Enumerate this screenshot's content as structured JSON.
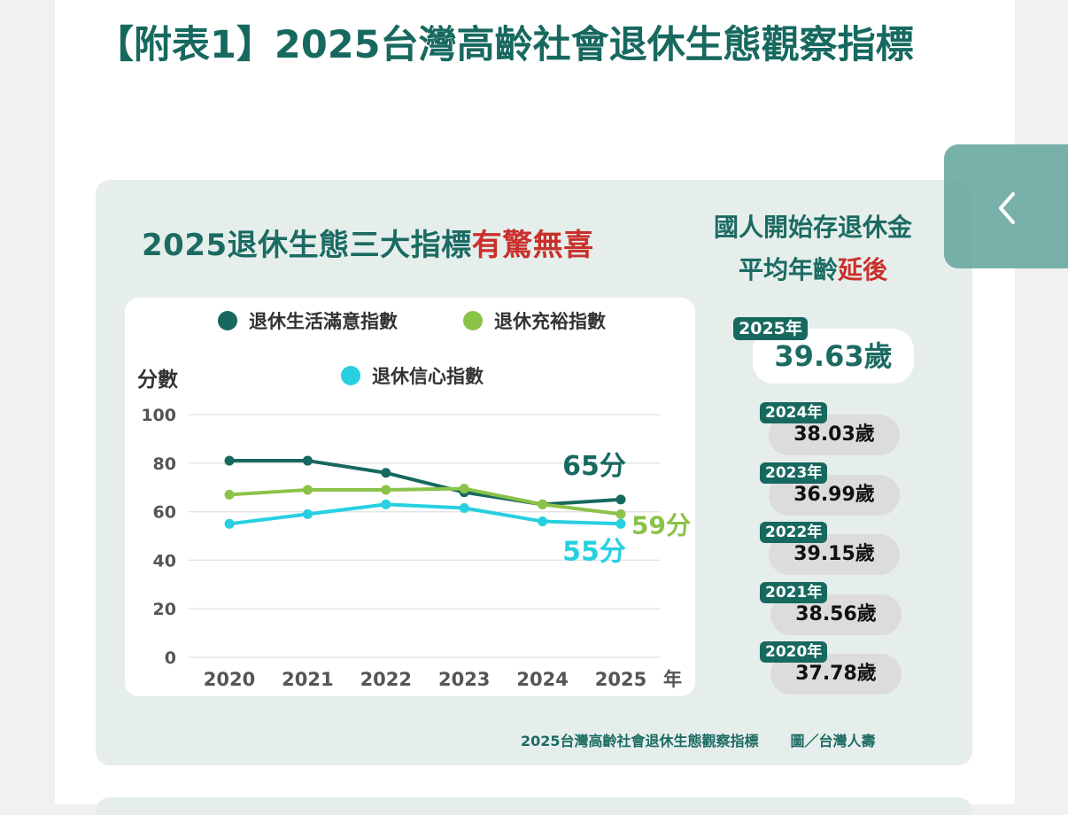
{
  "article": {
    "title": "【附表1】2025台灣高齡社會退休生態觀察指標"
  },
  "infographic": {
    "headline_main": "2025退休生態三大指標",
    "headline_emphasis": "有驚無喜",
    "side_title_line1": "國人開始存退休金",
    "side_title_line2_prefix": "平均年齡",
    "side_title_line2_emphasis": "延後",
    "credits_source": "2025台灣高齡社會退休生態觀察指標",
    "credits_image": "圖／台灣人壽",
    "colors": {
      "brand": "#17695f",
      "emphasis_red": "#c9302c",
      "background": "#e6eeec"
    },
    "ages": [
      {
        "year": "2025年",
        "age": "39.63歲",
        "current": true
      },
      {
        "year": "2024年",
        "age": "38.03歲",
        "current": false
      },
      {
        "year": "2023年",
        "age": "36.99歲",
        "current": false
      },
      {
        "year": "2022年",
        "age": "39.15歲",
        "current": false
      },
      {
        "year": "2021年",
        "age": "38.56歲",
        "current": false
      },
      {
        "year": "2020年",
        "age": "37.78歲",
        "current": false
      }
    ]
  },
  "chart_data": {
    "type": "line",
    "ylabel": "分數",
    "xlabel": "年",
    "x": [
      "2020",
      "2021",
      "2022",
      "2023",
      "2024",
      "2025"
    ],
    "ylim": [
      0,
      100
    ],
    "yticks": [
      "0",
      "20",
      "40",
      "60",
      "80",
      "100"
    ],
    "grid": true,
    "legend_position": "top",
    "series": [
      {
        "name": "退休生活滿意指數",
        "color": "#17695f",
        "values": [
          81,
          81,
          76,
          68,
          63,
          65
        ],
        "end_label": "65分"
      },
      {
        "name": "退休充裕指數",
        "color": "#8bc34a",
        "values": [
          67,
          69,
          69,
          69.5,
          63,
          59
        ],
        "end_label": "59分"
      },
      {
        "name": "退休信心指數",
        "color": "#26d0e0",
        "values": [
          55,
          59,
          63,
          61.5,
          56,
          55
        ],
        "end_label": "55分"
      }
    ]
  },
  "ui": {
    "back_button_icon": "chevron-left-icon"
  }
}
